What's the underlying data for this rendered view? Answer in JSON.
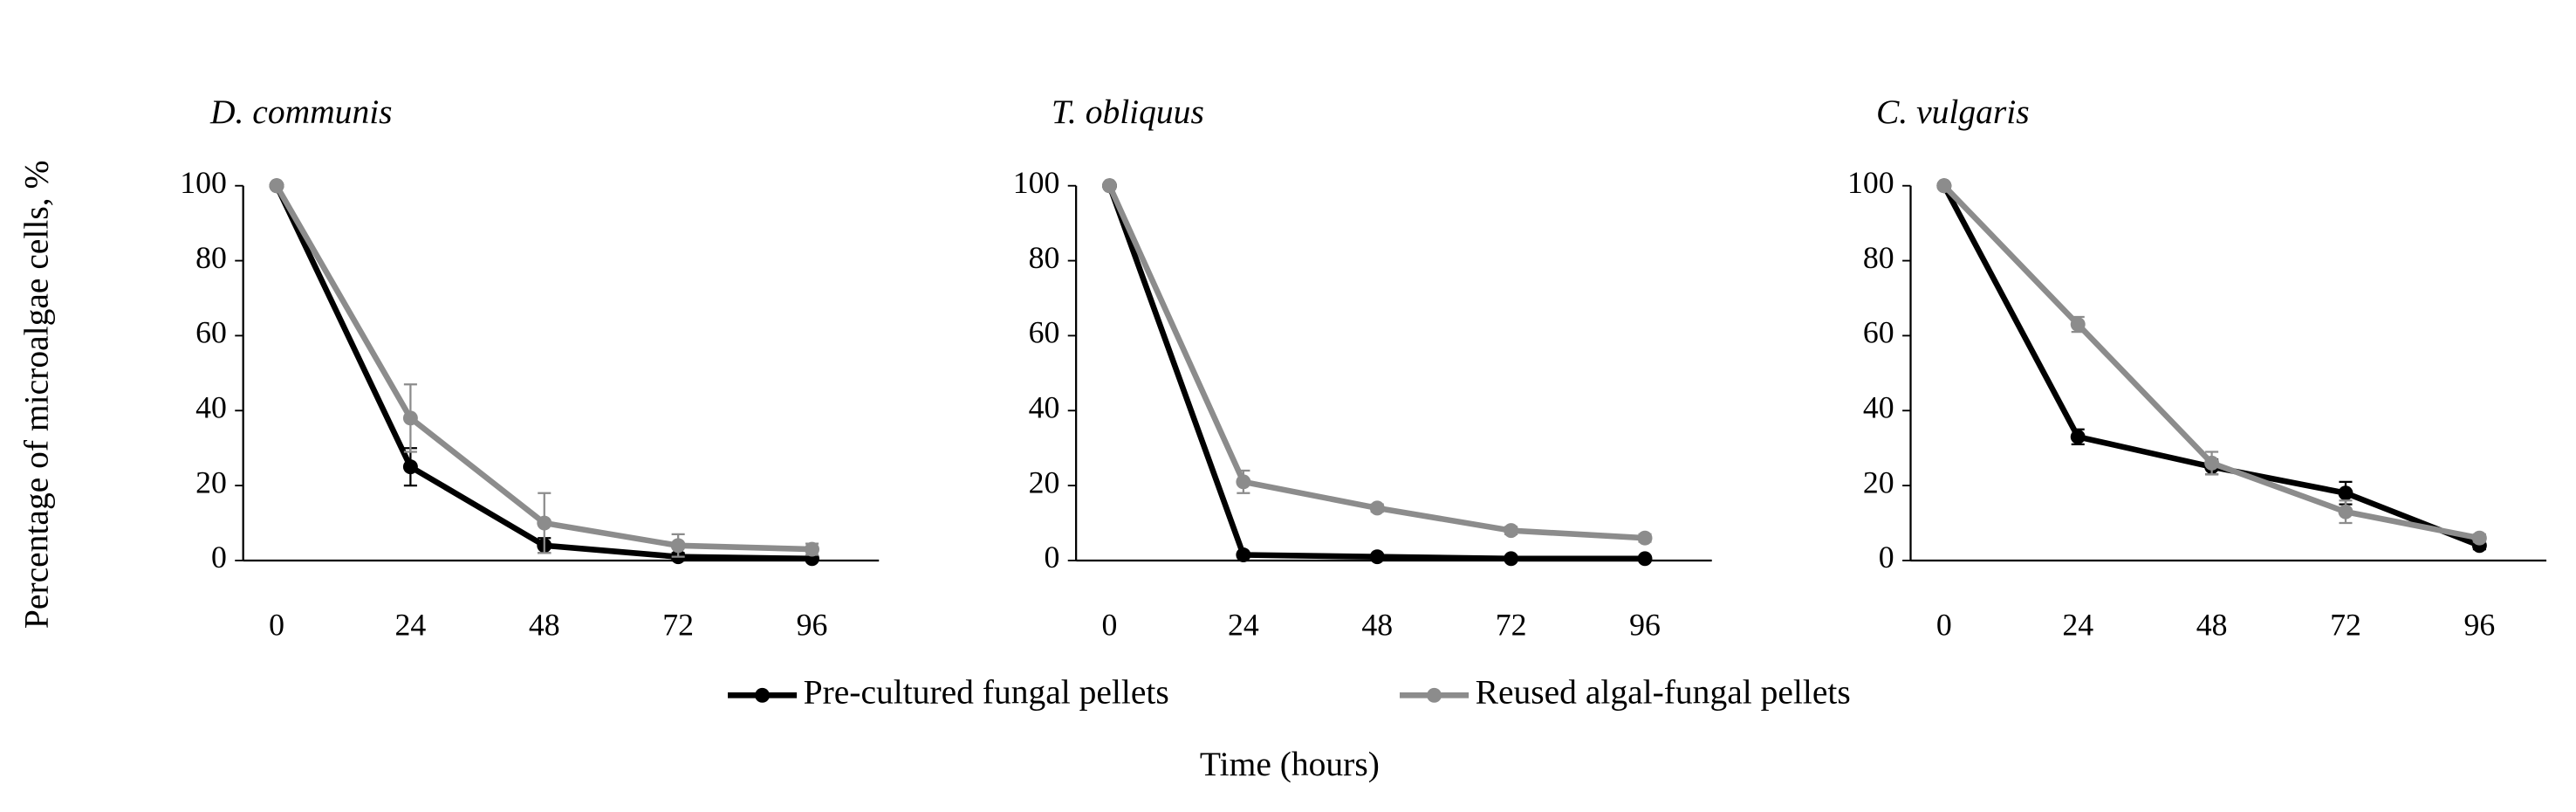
{
  "chart_data": [
    {
      "type": "line",
      "title": "D. communis",
      "ylabel": "Percentage of microalgae cells, %",
      "x": [
        0,
        24,
        48,
        72,
        96
      ],
      "xlim": [
        -6,
        108
      ],
      "xticks": [
        0,
        24,
        48,
        72,
        96
      ],
      "ylim": [
        0,
        100
      ],
      "yticks": [
        0,
        20,
        40,
        60,
        80,
        100
      ],
      "series": [
        {
          "name": "Pre-cultured fungal pellets",
          "color": "#000000",
          "values": [
            100,
            25,
            4,
            1,
            0.5
          ],
          "errors": [
            0,
            5,
            2,
            1,
            0.5
          ]
        },
        {
          "name": "Reused algal-fungal pellets",
          "color": "#8c8c8c",
          "values": [
            100,
            38,
            10,
            4,
            3
          ],
          "errors": [
            0,
            9,
            8,
            3,
            1.5
          ]
        }
      ]
    },
    {
      "type": "line",
      "title": "T. obliquus",
      "xlabel": "Time (hours)",
      "x": [
        0,
        24,
        48,
        72,
        96
      ],
      "xlim": [
        -6,
        108
      ],
      "xticks": [
        0,
        24,
        48,
        72,
        96
      ],
      "ylim": [
        0,
        100
      ],
      "yticks": [
        0,
        20,
        40,
        60,
        80,
        100
      ],
      "series": [
        {
          "color": "#000000",
          "values": [
            100,
            1.5,
            1,
            0.5,
            0.5
          ],
          "errors": [
            0,
            0.5,
            0.5,
            0.3,
            0.3
          ]
        },
        {
          "color": "#8c8c8c",
          "values": [
            100,
            21,
            14,
            8,
            6
          ],
          "errors": [
            0,
            3,
            1,
            1,
            1
          ]
        }
      ]
    },
    {
      "type": "line",
      "title": "C. vulgaris",
      "x": [
        0,
        24,
        48,
        72,
        96
      ],
      "xlim": [
        -6,
        108
      ],
      "xticks": [
        0,
        24,
        48,
        72,
        96
      ],
      "ylim": [
        0,
        100
      ],
      "yticks": [
        0,
        20,
        40,
        60,
        80,
        100
      ],
      "series": [
        {
          "color": "#000000",
          "values": [
            100,
            33,
            25,
            18,
            4
          ],
          "errors": [
            0,
            2,
            2,
            3,
            1
          ]
        },
        {
          "color": "#8c8c8c",
          "values": [
            100,
            63,
            26,
            13,
            6
          ],
          "errors": [
            0,
            2,
            3,
            3,
            1
          ]
        }
      ]
    }
  ]
}
